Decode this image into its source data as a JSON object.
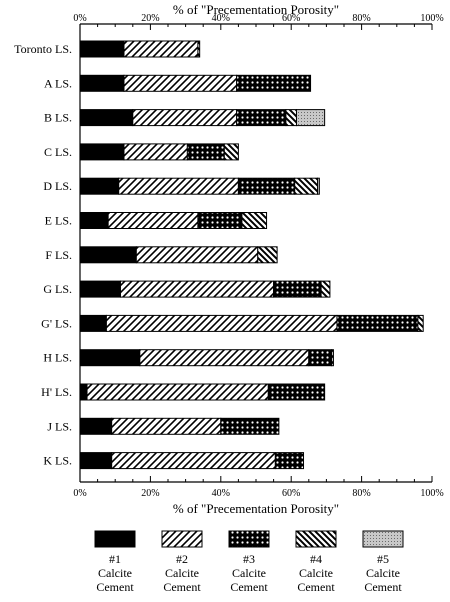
{
  "chart_data": {
    "type": "bar",
    "orientation": "horizontal",
    "stacked": true,
    "xlabel": "% of \"Precementation Porosity\"",
    "x_ticks": [
      "0%",
      "20%",
      "40%",
      "60%",
      "80%",
      "100%"
    ],
    "xlim": [
      0,
      100
    ],
    "grid": false,
    "legend_position": "bottom",
    "categories": [
      "Toronto LS.",
      "A LS.",
      "B LS.",
      "C LS.",
      "D LS.",
      "E LS.",
      "F LS.",
      "G LS.",
      "G' LS.",
      "H LS.",
      "H' LS.",
      "J LS.",
      "K LS."
    ],
    "series": [
      {
        "name": "#1 Calcite Cement",
        "values": [
          12.5,
          12.5,
          15,
          12.5,
          11,
          8,
          16,
          11.5,
          7.5,
          17,
          2,
          9,
          9
        ]
      },
      {
        "name": "#2 Calcite Cement",
        "values": [
          21,
          32,
          29.5,
          18,
          34,
          25.5,
          34.5,
          43.5,
          65.5,
          48,
          51.5,
          31,
          46.5
        ]
      },
      {
        "name": "#3 Calcite Cement",
        "values": [
          0,
          21,
          14,
          10.5,
          16,
          12.5,
          0,
          13.5,
          23,
          6.5,
          16,
          16.5,
          8
        ]
      },
      {
        "name": "#4 Calcite Cement",
        "values": [
          0.5,
          0,
          3,
          4,
          6.5,
          7,
          5.5,
          2.5,
          1.5,
          0.5,
          0,
          0,
          0
        ]
      },
      {
        "name": "#5 Calcite Cement",
        "values": [
          0,
          0,
          8,
          0,
          0.5,
          0,
          0,
          0,
          0,
          0,
          0,
          0,
          0
        ]
      }
    ],
    "legend": [
      {
        "num": "#1",
        "line1": "Calcite",
        "line2": "Cement"
      },
      {
        "num": "#2",
        "line1": "Calcite",
        "line2": "Cement"
      },
      {
        "num": "#3",
        "line1": "Calcite",
        "line2": "Cement"
      },
      {
        "num": "#4",
        "line1": "Calcite",
        "line2": "Cement"
      },
      {
        "num": "#5",
        "line1": "Calcite",
        "line2": "Cement"
      }
    ]
  }
}
